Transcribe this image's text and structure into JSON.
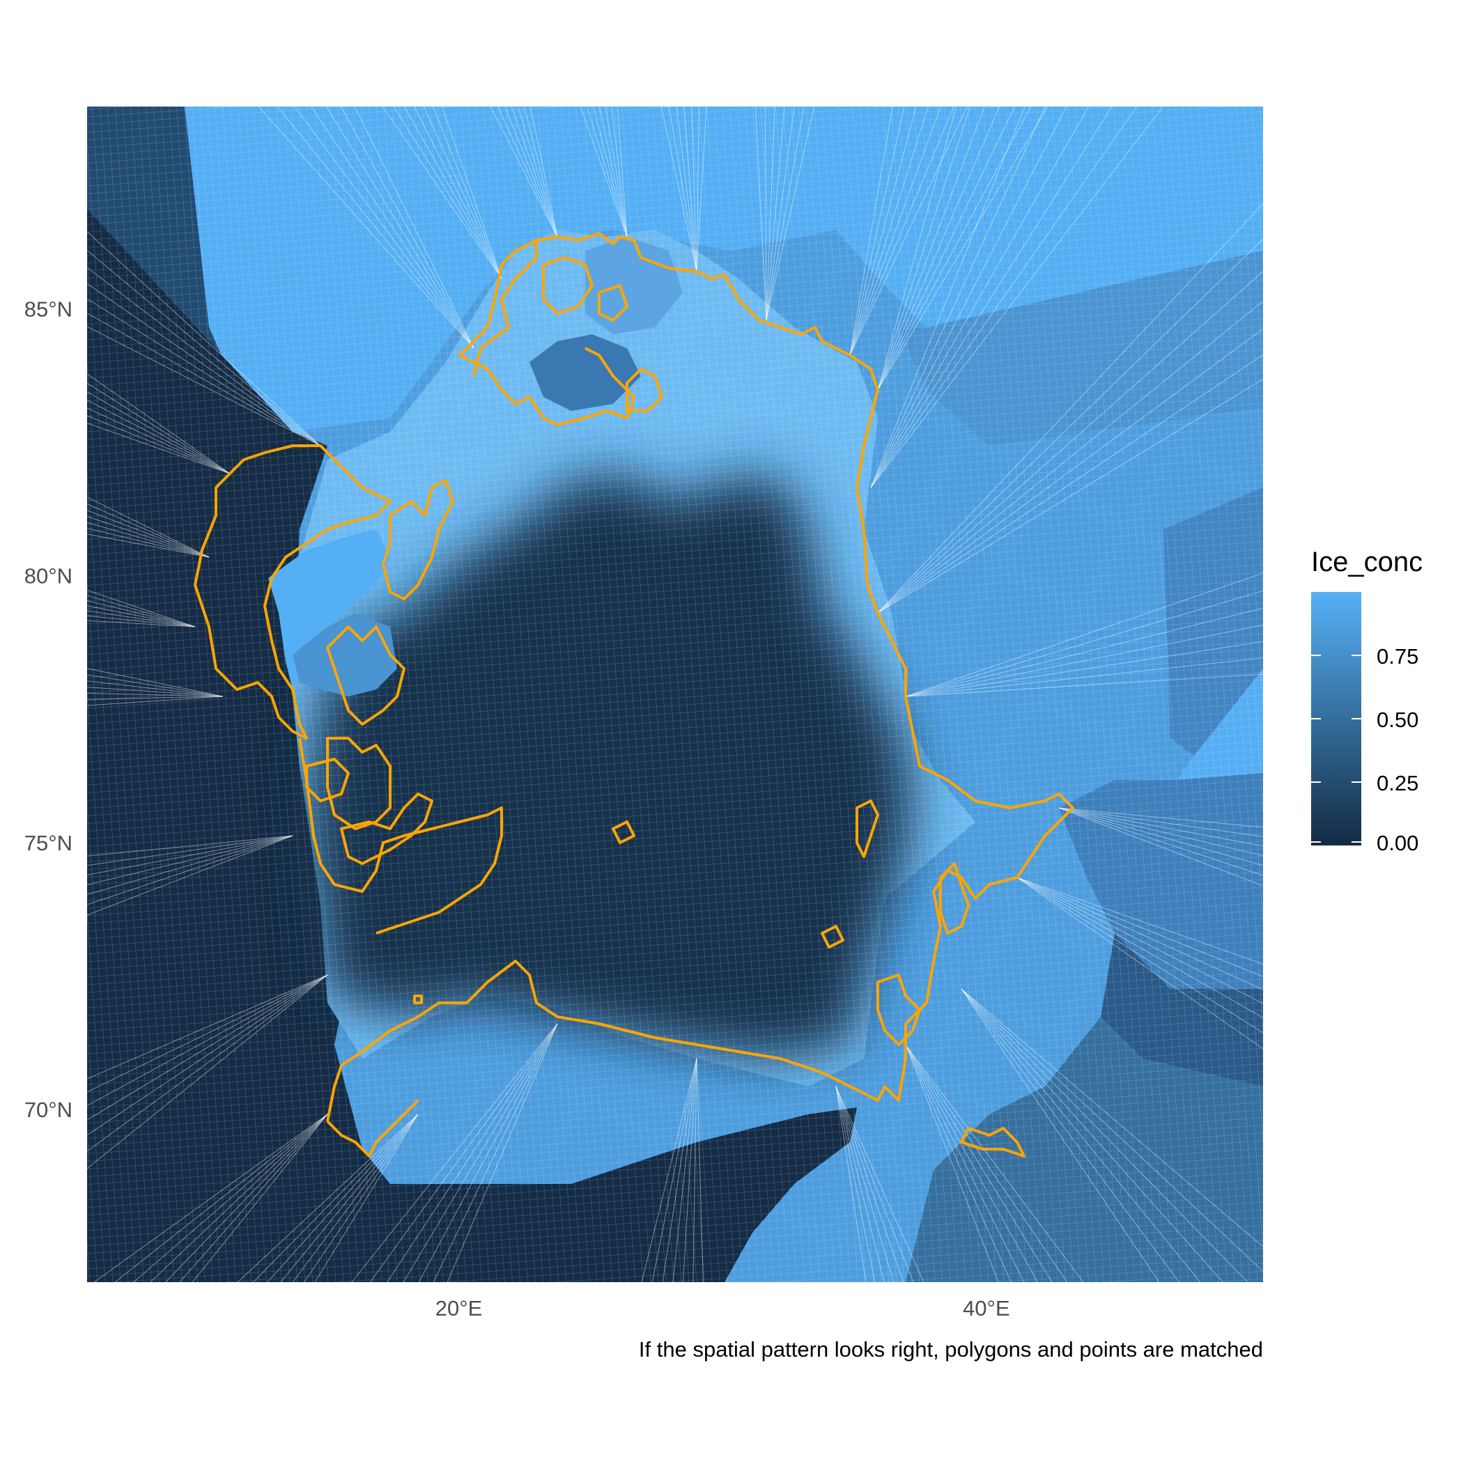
{
  "map": {
    "y_ticks": [
      {
        "label": "85°N",
        "lat": 85
      },
      {
        "label": "80°N",
        "lat": 80
      },
      {
        "label": "75°N",
        "lat": 75
      },
      {
        "label": "70°N",
        "lat": 70
      }
    ],
    "x_ticks": [
      {
        "label": "20°E",
        "lon": 20
      },
      {
        "label": "40°E",
        "lon": 40
      }
    ],
    "caption": "If the spatial pattern looks right, polygons and points are matched"
  },
  "legend": {
    "title": "Ice_conc",
    "low_color": "#132B43",
    "high_color": "#56B1F7",
    "range": [
      0,
      1
    ],
    "ticks": [
      {
        "label": "0.00",
        "value": 0
      },
      {
        "label": "0.25",
        "value": 0.25
      },
      {
        "label": "0.50",
        "value": 0.5
      },
      {
        "label": "0.75",
        "value": 0.75
      }
    ]
  },
  "colors": {
    "coastline": "#FFA500",
    "cell_border": "#ffffff",
    "tick_text": "#4d4d4d"
  }
}
